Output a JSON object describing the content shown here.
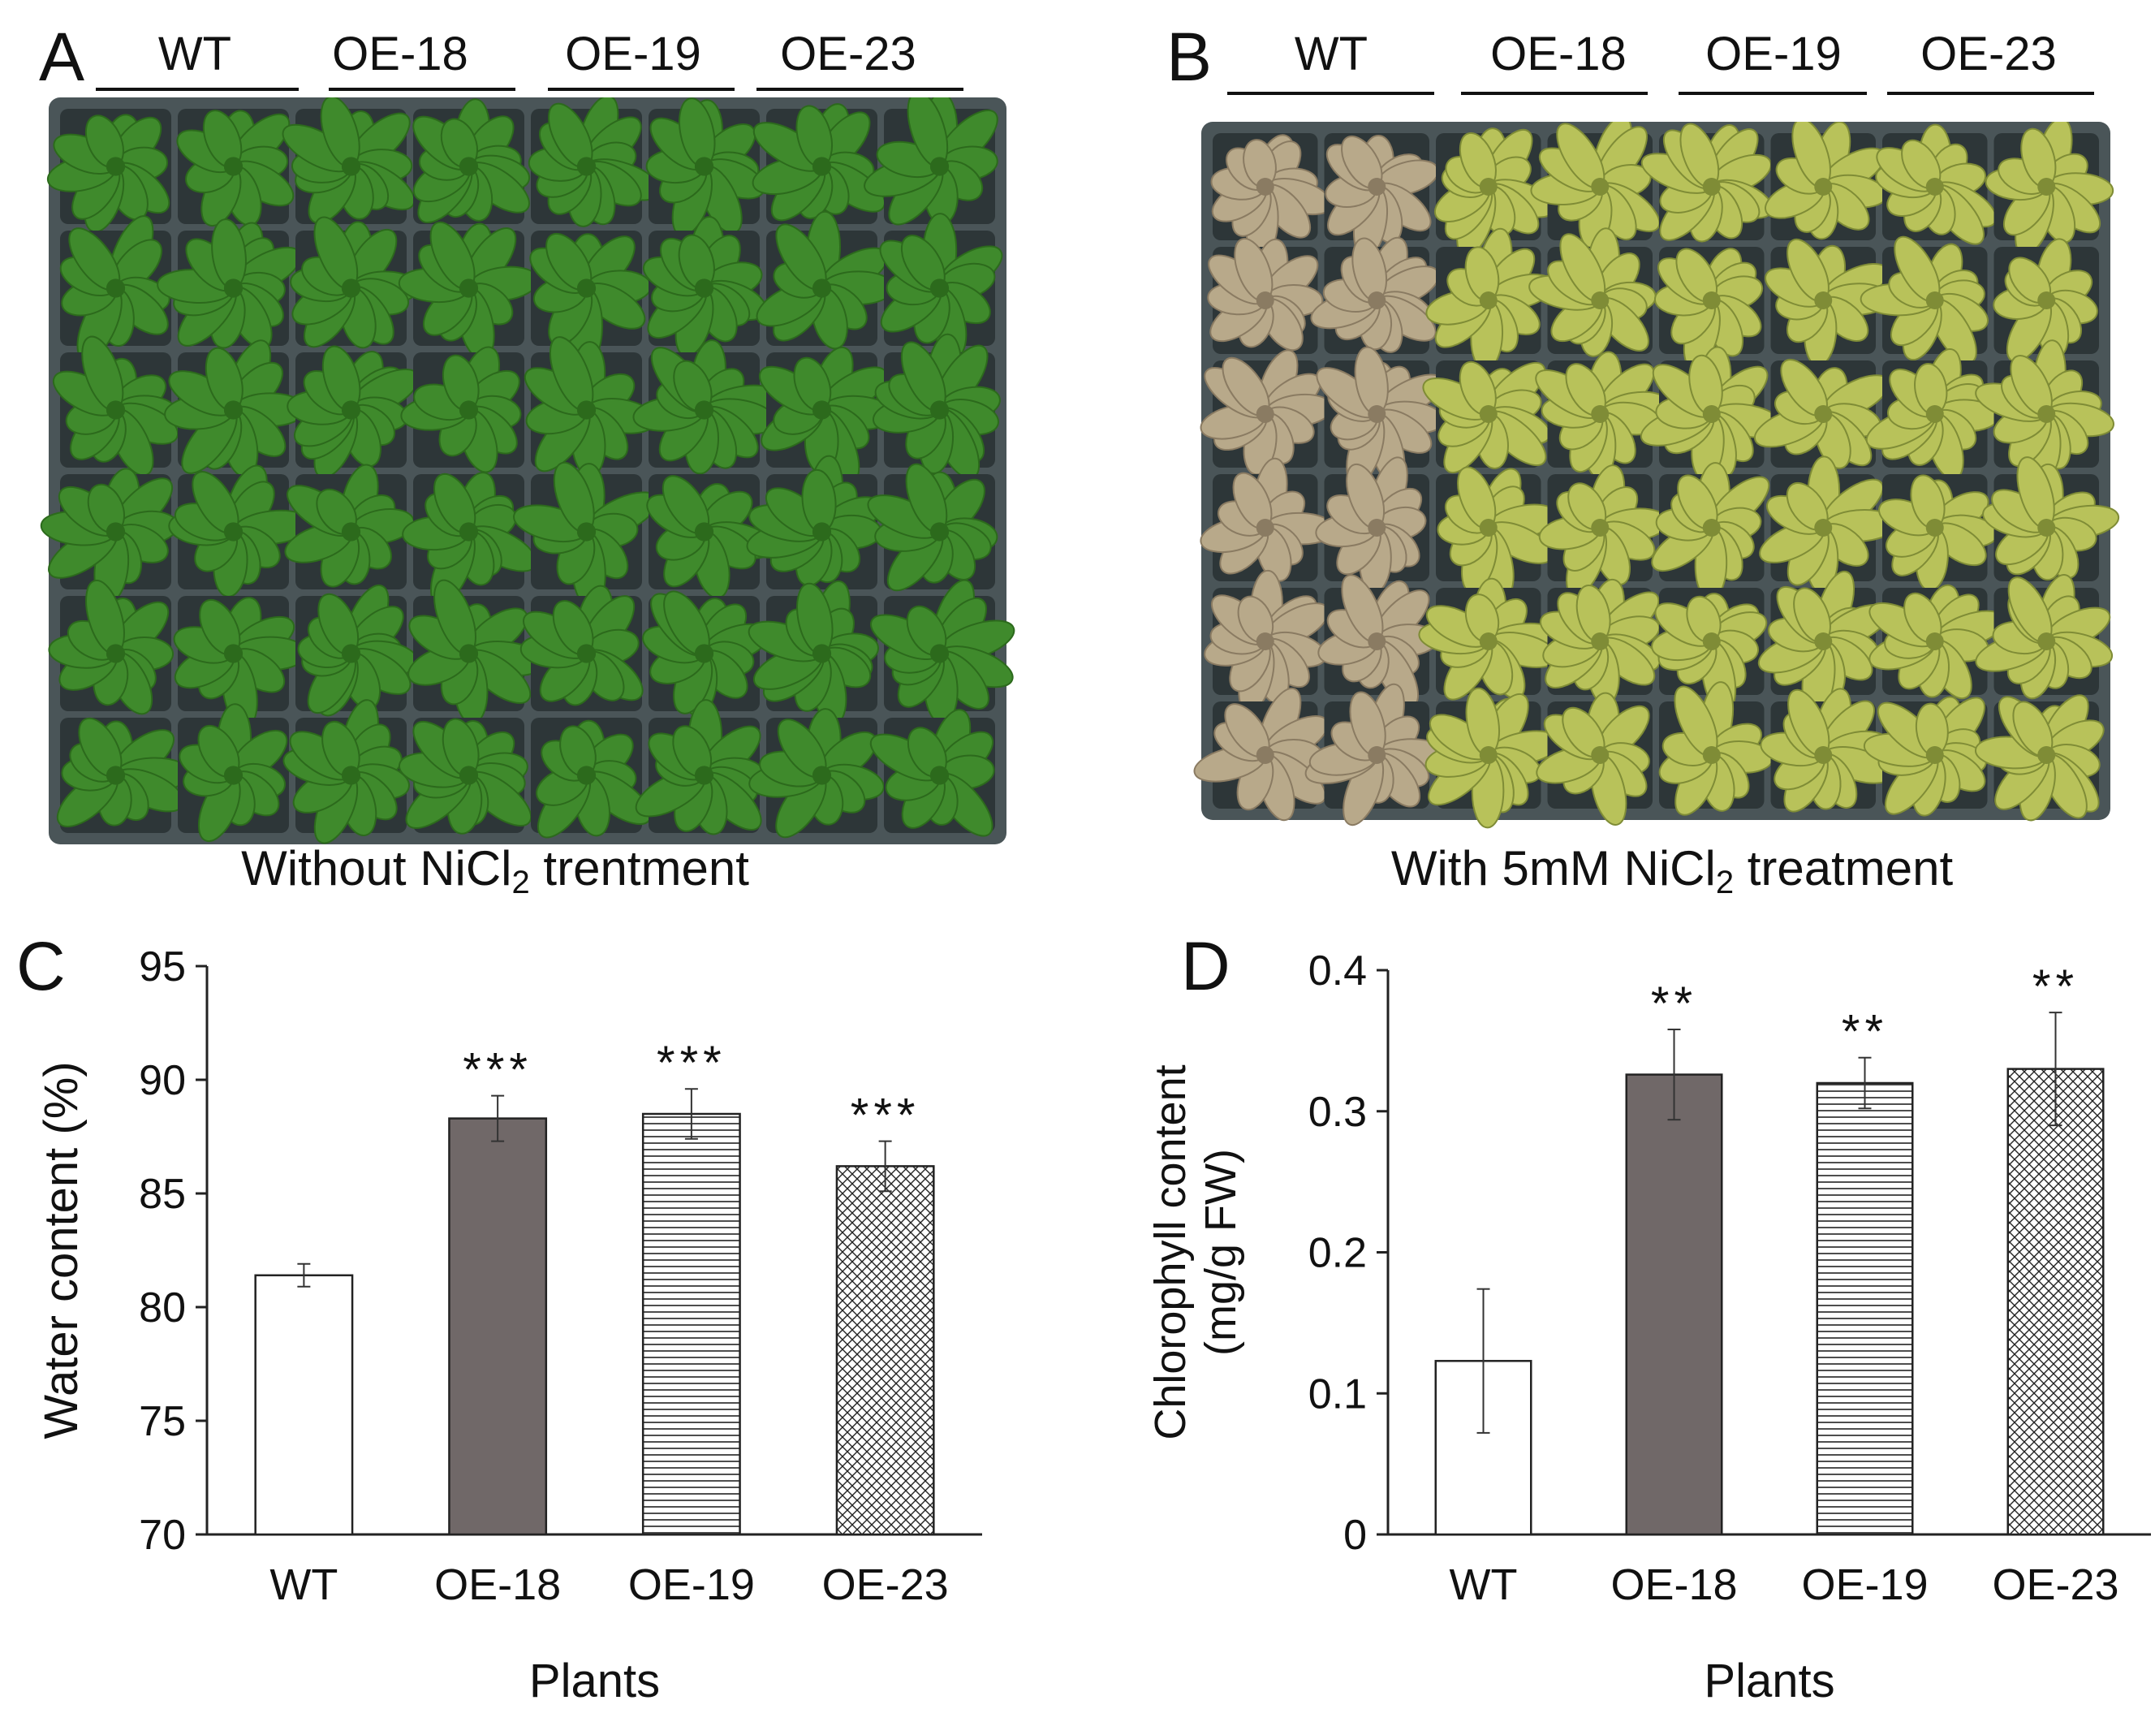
{
  "panels": {
    "a": {
      "letter": "A",
      "genotypes": [
        "WT",
        "OE-18",
        "OE-19",
        "OE-23"
      ],
      "caption_pre": "Without NiCl",
      "caption_sub": "2",
      "caption_post": " trentment"
    },
    "b": {
      "letter": "B",
      "genotypes": [
        "WT",
        "OE-18",
        "OE-19",
        "OE-23"
      ],
      "caption_pre": "With 5mM NiCl",
      "caption_sub": "2",
      "caption_post": " treatment"
    },
    "c": {
      "letter": "C"
    },
    "d": {
      "letter": "D"
    }
  },
  "colors": {
    "plant_green": "#3f8a2c",
    "plant_dark": "#2c6a1c",
    "plant_yellow": "#b8c25a",
    "plant_brown": "#b8a98a",
    "tray": "#4a5558",
    "bar_dark": "#706868"
  },
  "chart_data": [
    {
      "type": "bar",
      "panel": "C",
      "categories": [
        "WT",
        "OE-18",
        "OE-19",
        "OE-23"
      ],
      "values": [
        81.4,
        88.3,
        88.5,
        86.2
      ],
      "errors": [
        0.5,
        1.0,
        1.1,
        1.1
      ],
      "significance": [
        "",
        "***",
        "***",
        "***"
      ],
      "patterns": [
        "white",
        "solid-dark",
        "horizontal-lines",
        "crosshatch"
      ],
      "xlabel": "Plants",
      "ylabel": "Water content (%)",
      "ylim": [
        70,
        95
      ],
      "yticks": [
        "95",
        "90",
        "85",
        "80",
        "75",
        "70"
      ],
      "ytick_values": [
        95,
        90,
        85,
        80,
        75,
        70
      ],
      "grid": false
    },
    {
      "type": "bar",
      "panel": "D",
      "categories": [
        "WT",
        "OE-18",
        "OE-19",
        "OE-23"
      ],
      "values": [
        0.123,
        0.326,
        0.32,
        0.33
      ],
      "errors": [
        0.051,
        0.032,
        0.018,
        0.04
      ],
      "significance": [
        "",
        "**",
        "**",
        "**"
      ],
      "patterns": [
        "white",
        "solid-dark",
        "horizontal-lines",
        "crosshatch"
      ],
      "xlabel": "Plants",
      "ylabel_line1": "Chlorophyll  content",
      "ylabel_line2": "(mg/g FW)",
      "ylim": [
        0,
        0.4
      ],
      "yticks": [
        "0.4",
        "0.3",
        "0.2",
        "0.1",
        "0"
      ],
      "ytick_values": [
        0.4,
        0.3,
        0.2,
        0.1,
        0
      ],
      "grid": false
    }
  ]
}
